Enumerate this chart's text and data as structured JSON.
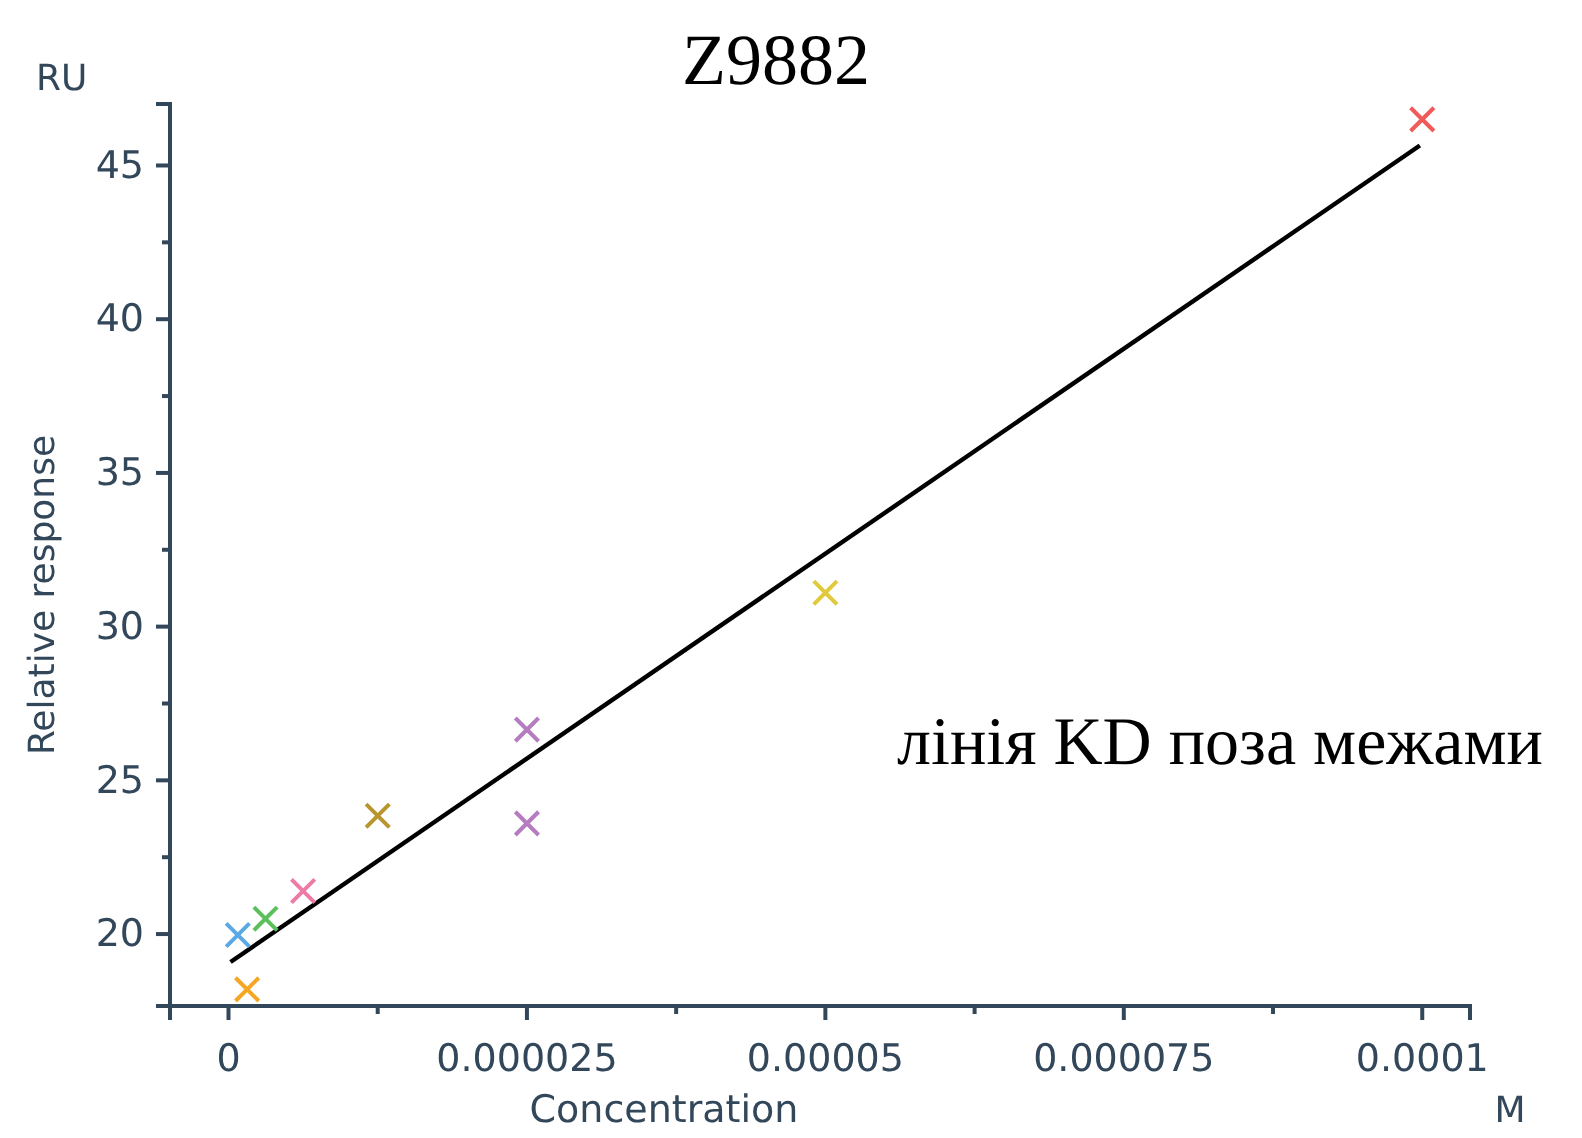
{
  "chart_data": {
    "type": "scatter",
    "title": "Z9882",
    "xlabel": "Concentration",
    "ylabel": "Relative response",
    "annotations": [
      "RU",
      "M",
      "лінія KD поза межами"
    ],
    "xlim": [
      -4.9e-06,
      0.000104
    ],
    "ylim": [
      17.66,
      47
    ],
    "xticks": [
      0,
      {
        "value": 1.25e-05,
        "label": null
      },
      {
        "value": 2.5e-05,
        "label": "0.000025"
      },
      {
        "value": 3.75e-05,
        "label": null
      },
      {
        "value": 5e-05,
        "label": "0.00005"
      },
      {
        "value": 6.25e-05,
        "label": null
      },
      {
        "value": 7.5e-05,
        "label": "0.000075"
      },
      {
        "value": 8.75e-05,
        "label": null
      },
      0.0001
    ],
    "yticks": [
      20,
      {
        "value": 22.5,
        "label": null
      },
      25,
      {
        "value": 27.5,
        "label": null
      },
      30,
      {
        "value": 32.5,
        "label": null
      },
      35,
      {
        "value": 37.5,
        "label": null
      },
      40,
      {
        "value": 42.5,
        "label": null
      },
      45
    ],
    "grid": false,
    "series": [
      {
        "marker": "cross",
        "x": [
          7.8e-07,
          1.56e-06,
          3.1e-06,
          6.25e-06,
          1.25e-05,
          2.5e-05,
          2.5e-05,
          5e-05,
          0.0001
        ],
        "values": [
          19.97,
          18.2,
          20.5,
          21.4,
          23.85,
          26.65,
          23.6,
          31.1,
          46.5
        ],
        "colors": [
          "#5aa9e6",
          "#f5a623",
          "#5cbf5c",
          "#ee7aa6",
          "#b8962e",
          "#b57cc0",
          "#b57cc0",
          "#e0c93a",
          "#f25a5a"
        ]
      },
      {
        "type": "line",
        "x": [
          1.7e-07,
          9.98e-05
        ],
        "values": [
          19.09,
          45.65
        ],
        "color": "#000000",
        "line_style": "solid",
        "marker": "none"
      }
    ]
  }
}
